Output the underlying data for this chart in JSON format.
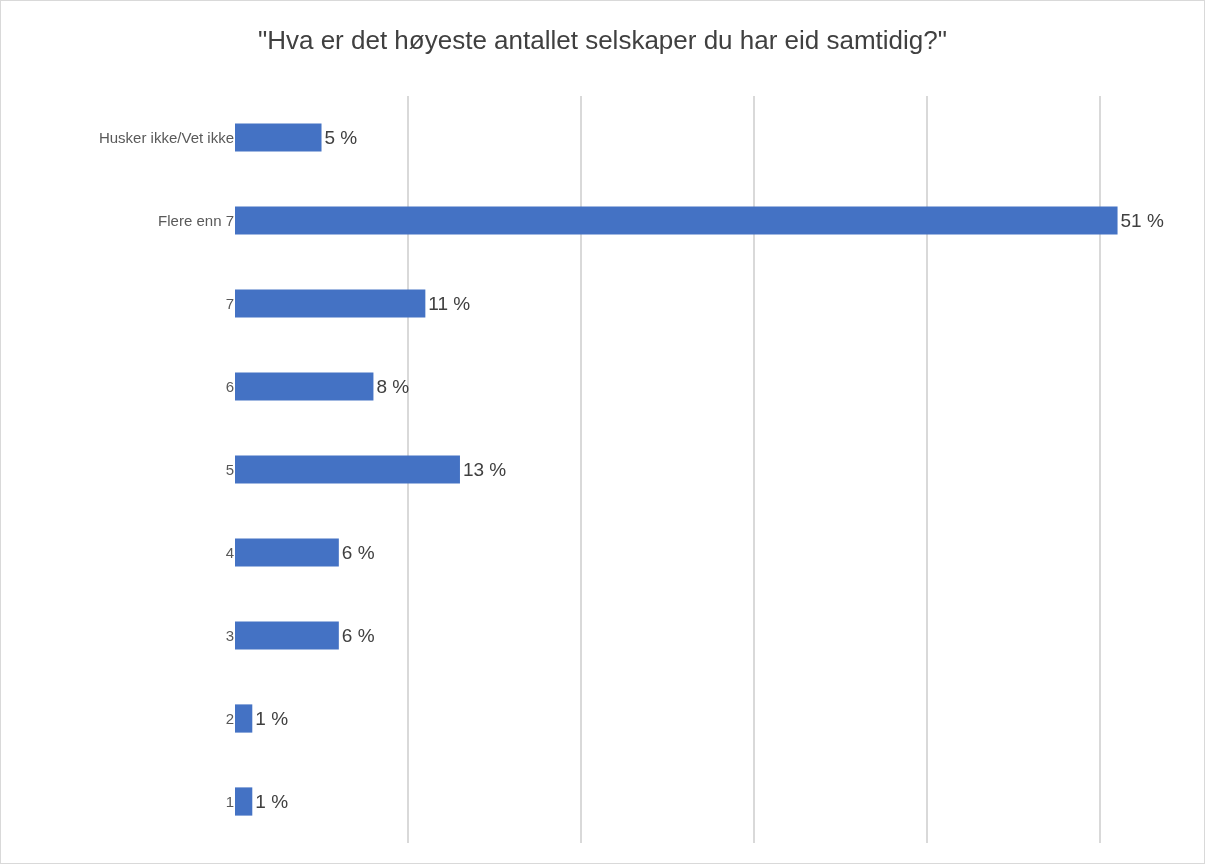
{
  "chart_data": {
    "type": "bar",
    "orientation": "horizontal",
    "title": "\"Hva er det høyeste antallet selskaper du har eid samtidig?\"",
    "categories": [
      "Husker ikke/Vet ikke",
      "Flere enn 7",
      "7",
      "6",
      "5",
      "4",
      "3",
      "2",
      "1"
    ],
    "values": [
      5,
      51,
      11,
      8,
      13,
      6,
      6,
      1,
      1
    ],
    "value_labels": [
      "5 %",
      "51 %",
      "11 %",
      "8 %",
      "13 %",
      "6 %",
      "6 %",
      "1 %",
      "1 %"
    ],
    "color": "#4472c4",
    "grid": "x",
    "tick_labels": "y"
  }
}
